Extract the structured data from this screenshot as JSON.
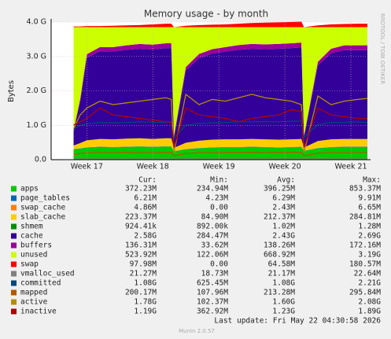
{
  "chart_data": {
    "type": "area",
    "title": "Memory usage - by month",
    "ylabel": "Bytes",
    "side_text": "RRDTOOL / TOBI OETIKER",
    "x": [
      16.8,
      16.9,
      17.0,
      17.2,
      17.4,
      17.6,
      17.8,
      18.0,
      18.2,
      18.28,
      18.32,
      18.5,
      18.7,
      18.9,
      19.1,
      19.3,
      19.5,
      19.7,
      19.9,
      20.1,
      20.25,
      20.29,
      20.5,
      20.7,
      20.9,
      21.1,
      21.25
    ],
    "xlim": [
      16.46,
      21.25
    ],
    "xticks": [
      {
        "value": 17,
        "label": "Week 17"
      },
      {
        "value": 18,
        "label": "Week 18"
      },
      {
        "value": 19,
        "label": "Week 19"
      },
      {
        "value": 20,
        "label": "Week 20"
      },
      {
        "value": 21,
        "label": "Week 21"
      }
    ],
    "ylim": [
      0,
      4
    ],
    "yticks": [
      {
        "value": 0,
        "label": "0.0"
      },
      {
        "value": 1,
        "label": "1.0 G"
      },
      {
        "value": 2,
        "label": "2.0 G"
      },
      {
        "value": 3,
        "label": "3.0 G"
      },
      {
        "value": 4,
        "label": "4.0 G"
      }
    ],
    "grid": true,
    "series": [
      {
        "name": "apps",
        "color": "#00cc00",
        "draw": "stack",
        "values": [
          0.3,
          0.32,
          0.35,
          0.37,
          0.36,
          0.37,
          0.38,
          0.37,
          0.38,
          0.38,
          0.24,
          0.3,
          0.33,
          0.35,
          0.36,
          0.36,
          0.37,
          0.36,
          0.35,
          0.36,
          0.37,
          0.25,
          0.33,
          0.36,
          0.37,
          0.37,
          0.37
        ]
      },
      {
        "name": "page_tables",
        "color": "#0066b3",
        "draw": "stack",
        "values": [
          0.006,
          0.006,
          0.006,
          0.006,
          0.006,
          0.006,
          0.006,
          0.006,
          0.006,
          0.006,
          0.006,
          0.006,
          0.006,
          0.006,
          0.006,
          0.006,
          0.006,
          0.006,
          0.006,
          0.006,
          0.006,
          0.006,
          0.006,
          0.006,
          0.006,
          0.006,
          0.006
        ]
      },
      {
        "name": "swap_cache",
        "color": "#ff8000",
        "draw": "stack",
        "values": [
          0.005,
          0.005,
          0.005,
          0.005,
          0.005,
          0.005,
          0.005,
          0.005,
          0.005,
          0.005,
          0.005,
          0.005,
          0.005,
          0.005,
          0.005,
          0.005,
          0.005,
          0.005,
          0.005,
          0.005,
          0.005,
          0.005,
          0.005,
          0.005,
          0.005,
          0.005,
          0.005
        ]
      },
      {
        "name": "slab_cache",
        "color": "#ffcc00",
        "draw": "stack",
        "values": [
          0.1,
          0.15,
          0.2,
          0.22,
          0.22,
          0.23,
          0.23,
          0.22,
          0.23,
          0.23,
          0.09,
          0.18,
          0.21,
          0.22,
          0.22,
          0.22,
          0.22,
          0.22,
          0.22,
          0.22,
          0.22,
          0.09,
          0.2,
          0.22,
          0.22,
          0.22,
          0.22
        ]
      },
      {
        "name": "shmem",
        "color": "#008f00",
        "draw": "stack",
        "values": [
          0.001,
          0.001,
          0.001,
          0.001,
          0.001,
          0.001,
          0.001,
          0.001,
          0.001,
          0.001,
          0.001,
          0.001,
          0.001,
          0.001,
          0.001,
          0.001,
          0.001,
          0.001,
          0.001,
          0.001,
          0.001,
          0.001,
          0.001,
          0.001,
          0.001,
          0.001,
          0.001
        ]
      },
      {
        "name": "cache",
        "color": "#330099",
        "draw": "stack",
        "values": [
          0.4,
          1.2,
          2.4,
          2.55,
          2.55,
          2.58,
          2.6,
          2.6,
          2.62,
          2.62,
          0.3,
          2.1,
          2.4,
          2.5,
          2.55,
          2.6,
          2.62,
          2.62,
          2.64,
          2.65,
          2.66,
          0.3,
          2.2,
          2.5,
          2.58,
          2.58,
          2.58
        ]
      },
      {
        "name": "buffers",
        "color": "#990099",
        "draw": "stack",
        "values": [
          0.05,
          0.08,
          0.1,
          0.12,
          0.13,
          0.13,
          0.14,
          0.14,
          0.14,
          0.14,
          0.04,
          0.1,
          0.12,
          0.13,
          0.13,
          0.14,
          0.14,
          0.14,
          0.14,
          0.14,
          0.14,
          0.04,
          0.1,
          0.13,
          0.14,
          0.14,
          0.14
        ]
      },
      {
        "name": "unused",
        "color": "#ccff00",
        "draw": "stack",
        "values": [
          2.99,
          2.09,
          0.79,
          0.58,
          0.58,
          0.53,
          0.49,
          0.51,
          0.47,
          0.47,
          3.17,
          1.16,
          0.78,
          0.64,
          0.58,
          0.52,
          0.49,
          0.5,
          0.49,
          0.47,
          0.45,
          3.16,
          1.01,
          0.63,
          0.53,
          0.53,
          0.53
        ]
      },
      {
        "name": "swap",
        "color": "#ff0000",
        "draw": "stack",
        "values": [
          0.02,
          0.02,
          0.03,
          0.03,
          0.04,
          0.05,
          0.06,
          0.08,
          0.1,
          0.1,
          0,
          0.04,
          0.06,
          0.07,
          0.08,
          0.1,
          0.12,
          0.13,
          0.14,
          0.15,
          0.16,
          0,
          0.05,
          0.08,
          0.09,
          0.1,
          0.1
        ]
      },
      {
        "name": "vmalloc_used",
        "color": "#808080",
        "draw": "line",
        "values": [
          0.021,
          0.021,
          0.021,
          0.021,
          0.021,
          0.021,
          0.021,
          0.021,
          0.021,
          0.021,
          0.021,
          0.021,
          0.021,
          0.021,
          0.021,
          0.021,
          0.021,
          0.021,
          0.021,
          0.021,
          0.021,
          0.021,
          0.021,
          0.021,
          0.021,
          0.021,
          0.021
        ]
      },
      {
        "name": "committed",
        "color": "#00487d",
        "draw": "line",
        "values": [
          0.9,
          1.0,
          1.05,
          1.08,
          1.07,
          1.08,
          1.1,
          1.09,
          1.08,
          1.08,
          0.63,
          1.0,
          1.05,
          1.07,
          1.08,
          1.1,
          1.1,
          1.11,
          1.1,
          1.12,
          1.12,
          0.65,
          1.02,
          1.08,
          1.08,
          1.1,
          1.08
        ]
      },
      {
        "name": "mapped",
        "color": "#b35a00",
        "draw": "line",
        "values": [
          0.15,
          0.18,
          0.2,
          0.2,
          0.2,
          0.21,
          0.2,
          0.2,
          0.21,
          0.21,
          0.11,
          0.18,
          0.2,
          0.2,
          0.21,
          0.21,
          0.21,
          0.2,
          0.21,
          0.21,
          0.21,
          0.11,
          0.19,
          0.2,
          0.2,
          0.2,
          0.2
        ]
      },
      {
        "name": "active",
        "color": "#b38f00",
        "draw": "line",
        "values": [
          0.9,
          1.3,
          1.5,
          1.7,
          1.6,
          1.65,
          1.7,
          1.75,
          1.8,
          1.75,
          0.2,
          1.9,
          1.6,
          1.75,
          1.7,
          1.8,
          1.9,
          1.8,
          1.75,
          1.7,
          1.6,
          0.2,
          1.85,
          1.6,
          1.7,
          1.75,
          1.78
        ]
      },
      {
        "name": "inactive",
        "color": "#b00000",
        "draw": "line",
        "values": [
          1.0,
          1.1,
          1.2,
          1.5,
          1.3,
          1.25,
          1.2,
          1.15,
          1.1,
          1.1,
          0.36,
          1.5,
          1.3,
          1.25,
          1.2,
          1.1,
          1.2,
          1.25,
          1.3,
          1.45,
          1.4,
          0.36,
          1.5,
          1.3,
          1.25,
          1.2,
          1.19
        ]
      }
    ],
    "legend_table": {
      "headers": [
        "Cur:",
        "Min:",
        "Avg:",
        "Max:"
      ],
      "rows": [
        [
          "372.23M",
          "234.94M",
          "396.25M",
          "853.37M"
        ],
        [
          "6.21M",
          "4.23M",
          "6.29M",
          "9.91M"
        ],
        [
          "4.86M",
          "0.00",
          "2.43M",
          "6.65M"
        ],
        [
          "223.37M",
          "84.90M",
          "212.37M",
          "284.81M"
        ],
        [
          "924.41k",
          "892.00k",
          "1.02M",
          "1.28M"
        ],
        [
          "2.58G",
          "284.47M",
          "2.43G",
          "2.69G"
        ],
        [
          "136.31M",
          "33.62M",
          "138.26M",
          "172.16M"
        ],
        [
          "523.92M",
          "122.06M",
          "668.92M",
          "3.19G"
        ],
        [
          "97.98M",
          "0.00",
          "64.58M",
          "180.57M"
        ],
        [
          "21.27M",
          "18.73M",
          "21.17M",
          "22.64M"
        ],
        [
          "1.08G",
          "625.45M",
          "1.08G",
          "2.21G"
        ],
        [
          "200.17M",
          "107.96M",
          "213.28M",
          "295.84M"
        ],
        [
          "1.78G",
          "102.37M",
          "1.60G",
          "2.08G"
        ],
        [
          "1.19G",
          "362.92M",
          "1.23G",
          "1.89G"
        ]
      ]
    },
    "last_update": "Last update: Fri May 22 04:30:58 2026",
    "footer": "Munin 2.0.57"
  }
}
